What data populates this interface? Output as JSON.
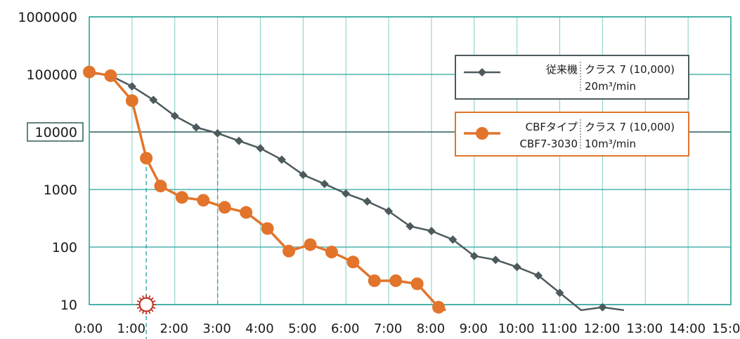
{
  "chart_data": {
    "type": "line",
    "yscale": "log",
    "ylim": [
      10,
      1000000
    ],
    "xlim": [
      "0:00",
      "15:00"
    ],
    "grid": true,
    "legend_position": "right",
    "y_ticks": [
      "1000000",
      "100000",
      "10000",
      "1000",
      "100",
      "10"
    ],
    "x_ticks": [
      "0:00",
      "1:00",
      "2:00",
      "3:00",
      "4:00",
      "5:00",
      "6:00",
      "7:00",
      "8:00",
      "9:00",
      "10:00",
      "11:00",
      "12:00",
      "13:00",
      "14:00",
      "15:00"
    ],
    "series": [
      {
        "name": "従来機",
        "legend_spec": "クラス 7 (10,000)",
        "legend_flow": "20m³/min",
        "color": "#4d5a5d",
        "marker": "diamond",
        "x": [
          "0:00",
          "0:30",
          "1:00",
          "1:30",
          "2:00",
          "2:30",
          "3:00",
          "3:30",
          "4:00",
          "4:30",
          "5:00",
          "5:30",
          "6:00",
          "6:30",
          "7:00",
          "7:30",
          "8:00",
          "8:30",
          "9:00",
          "9:30",
          "10:00",
          "10:30",
          "11:00",
          "11:30",
          "12:00",
          "12:30"
        ],
        "y": [
          110000,
          95000,
          62000,
          36000,
          19000,
          12000,
          9500,
          7000,
          5200,
          3300,
          1800,
          1250,
          850,
          620,
          420,
          230,
          190,
          135,
          70,
          60,
          45,
          32,
          16,
          8,
          9,
          8
        ],
        "marked": [
          false,
          false,
          true,
          true,
          true,
          true,
          true,
          true,
          true,
          true,
          true,
          true,
          true,
          true,
          true,
          true,
          true,
          true,
          true,
          true,
          true,
          true,
          true,
          false,
          true,
          false
        ]
      },
      {
        "name": "CBFタイプ",
        "model": "CBF7-3030",
        "legend_spec": "クラス 7 (10,000)",
        "legend_flow": "10m³/min",
        "color": "#e2742b",
        "marker": "circle",
        "x": [
          "0:00",
          "0:30",
          "1:00",
          "1:20",
          "1:40",
          "2:10",
          "2:40",
          "3:10",
          "3:40",
          "4:10",
          "4:40",
          "5:10",
          "5:40",
          "6:10",
          "6:40",
          "7:10",
          "7:40",
          "8:10",
          "8:20"
        ],
        "y": [
          110000,
          95000,
          35000,
          3500,
          1150,
          730,
          650,
          490,
          400,
          210,
          85,
          110,
          82,
          55,
          26,
          26,
          23,
          9,
          8
        ],
        "marked": [
          true,
          true,
          true,
          true,
          true,
          true,
          true,
          true,
          true,
          true,
          true,
          true,
          true,
          true,
          true,
          true,
          true,
          true,
          false
        ]
      }
    ],
    "annotations": {
      "highlighted_tick": "10000",
      "reference_lines": [
        {
          "x": "1:20",
          "from": 10,
          "to": 3500
        },
        {
          "x": "3:00",
          "from": 10,
          "to": 10000
        }
      ]
    }
  }
}
